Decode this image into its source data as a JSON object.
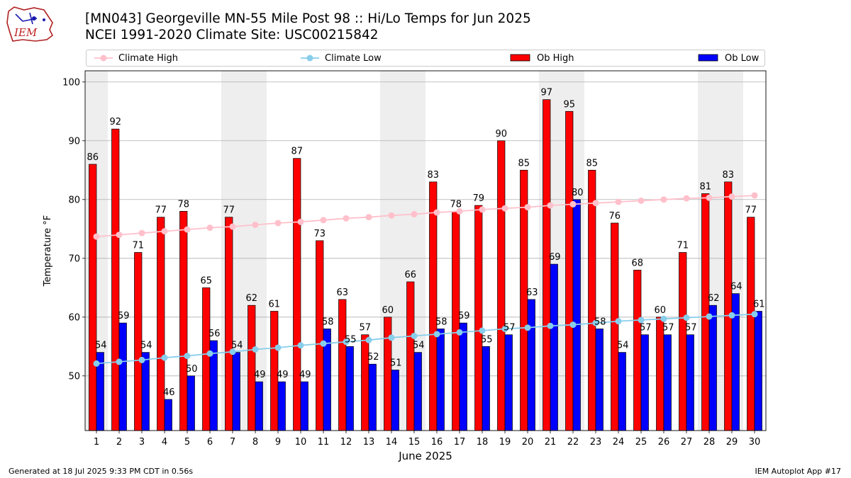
{
  "header": {
    "logo_text": "IEM",
    "title_line1": "[MN043] Georgeville MN-55 Mile Post 98 :: Hi/Lo Temps for Jun 2025",
    "title_line2": "NCEI 1991-2020 Climate Site: USC00215842"
  },
  "legend": {
    "climate_high": "Climate High",
    "climate_low": "Climate Low",
    "ob_high": "Ob High",
    "ob_low": "Ob Low"
  },
  "colors": {
    "ob_high": "#ff0000",
    "ob_low": "#0000ff",
    "climate_high": "#ffc0cb",
    "climate_low": "#87ceeb",
    "weekend_band": "#eeeeee"
  },
  "footer": {
    "generated": "Generated at 18 Jul 2025 9:33 PM CDT in 0.56s",
    "app": "IEM Autoplot App #17"
  },
  "chart_data": {
    "type": "bar",
    "xlabel": "June 2025",
    "ylabel": "Temperature °F",
    "ylim": [
      40.7,
      101.9
    ],
    "yticks": [
      50,
      60,
      70,
      80,
      90,
      100
    ],
    "grid": true,
    "legend_position": "top",
    "categories": [
      "1",
      "2",
      "3",
      "4",
      "5",
      "6",
      "7",
      "8",
      "9",
      "10",
      "11",
      "12",
      "13",
      "14",
      "15",
      "16",
      "17",
      "18",
      "19",
      "20",
      "21",
      "22",
      "23",
      "24",
      "25",
      "26",
      "27",
      "28",
      "29",
      "30"
    ],
    "shaded_days": [
      1,
      7,
      8,
      14,
      15,
      21,
      22,
      28,
      29
    ],
    "series": [
      {
        "name": "Ob High",
        "kind": "bar",
        "values": [
          86,
          92,
          71,
          77,
          78,
          65,
          77,
          62,
          61,
          87,
          73,
          63,
          57,
          60,
          66,
          83,
          78,
          79,
          90,
          85,
          97,
          95,
          85,
          76,
          68,
          60,
          71,
          81,
          83,
          77
        ]
      },
      {
        "name": "Ob Low",
        "kind": "bar",
        "values": [
          54,
          59,
          54,
          46,
          50,
          56,
          54,
          49,
          49,
          49,
          58,
          55,
          52,
          51,
          54,
          58,
          59,
          55,
          57,
          63,
          69,
          80,
          58,
          54,
          57,
          57,
          57,
          62,
          64,
          61
        ]
      },
      {
        "name": "Climate High",
        "kind": "line",
        "values": [
          73.7,
          74.0,
          74.3,
          74.6,
          74.9,
          75.2,
          75.4,
          75.7,
          76.0,
          76.2,
          76.5,
          76.8,
          77.0,
          77.3,
          77.5,
          77.8,
          78.0,
          78.3,
          78.5,
          78.7,
          79.0,
          79.2,
          79.4,
          79.6,
          79.8,
          80.0,
          80.2,
          80.3,
          80.5,
          80.7
        ]
      },
      {
        "name": "Climate Low",
        "kind": "line",
        "values": [
          52.1,
          52.4,
          52.7,
          53.1,
          53.4,
          53.8,
          54.1,
          54.5,
          54.8,
          55.2,
          55.5,
          55.8,
          56.1,
          56.5,
          56.8,
          57.1,
          57.4,
          57.7,
          58.0,
          58.2,
          58.5,
          58.7,
          59.0,
          59.3,
          59.5,
          59.7,
          59.9,
          60.1,
          60.3,
          60.5
        ]
      }
    ]
  }
}
